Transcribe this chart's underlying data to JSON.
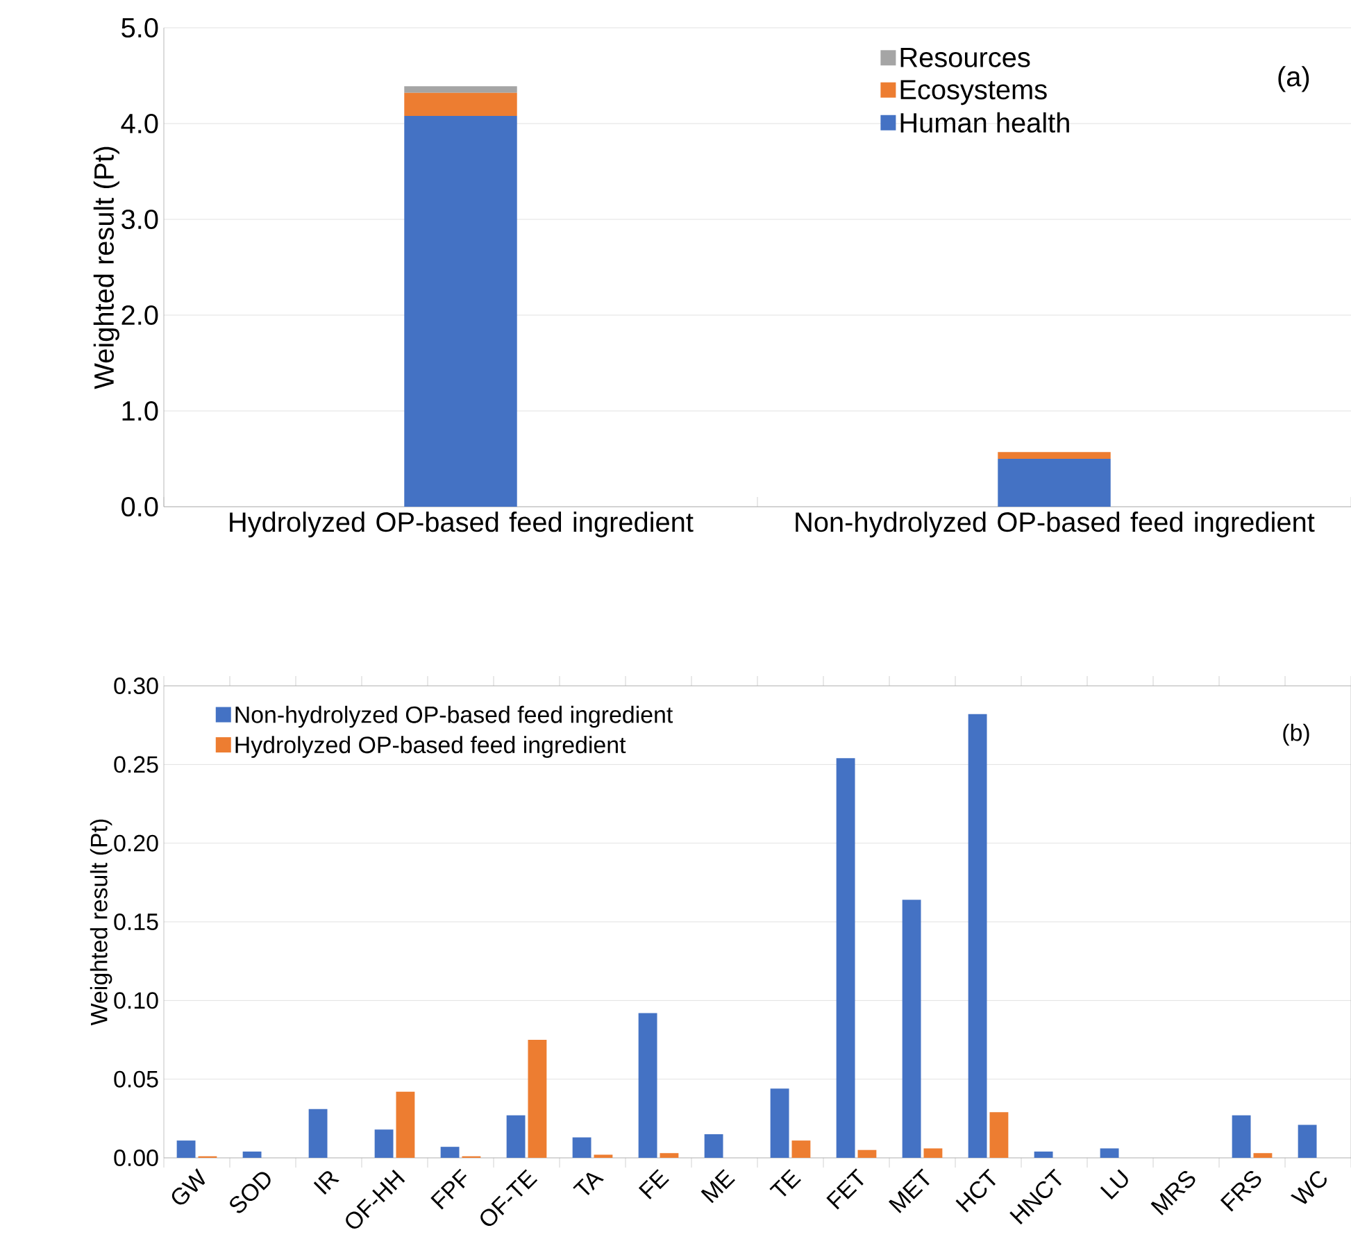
{
  "chart_data": [
    {
      "type": "bar",
      "stacked": true,
      "ylabel": "Weighted result (Pt)",
      "categories": [
        "Hydrolyzed OP-based feed ingredient",
        "Non-hydrolyzed OP-based feed ingredient"
      ],
      "series": [
        {
          "name": "Human health",
          "color": "#4472c4",
          "values": [
            4.08,
            0.5
          ]
        },
        {
          "name": "Ecosystems",
          "color": "#ed7d31",
          "values": [
            0.24,
            0.07
          ]
        },
        {
          "name": "Resources",
          "color": "#a5a5a5",
          "values": [
            0.07,
            null
          ]
        }
      ],
      "ylim": [
        0,
        5
      ],
      "yticks": [
        {
          "value": 0,
          "label": "0.0"
        },
        {
          "value": 1,
          "label": "1.0"
        },
        {
          "value": 2,
          "label": "2.0"
        },
        {
          "value": 3,
          "label": "3.0"
        },
        {
          "value": 4,
          "label": "4.0"
        },
        {
          "value": 5,
          "label": "5.0"
        }
      ],
      "grid": "y",
      "legend": "top right",
      "annotations": [
        "(a)"
      ]
    },
    {
      "type": "bar",
      "ylabel": "Weighted result (Pt)",
      "categories": [
        "GW",
        "SOD",
        "IR",
        "OF-HH",
        "FPF",
        "OF-TE",
        "TA",
        "FE",
        "ME",
        "TE",
        "FET",
        "MET",
        "HCT",
        "HNCT",
        "LU",
        "MRS",
        "FRS",
        "WC"
      ],
      "series": [
        {
          "name": "Non-hydrolyzed OP-based feed ingredient",
          "color": "#4472c4",
          "values": [
            0.011,
            0.004,
            0.031,
            0.018,
            0.007,
            0.027,
            0.013,
            0.092,
            0.015,
            0.044,
            0.254,
            0.164,
            0.282,
            0.004,
            0.006,
            0,
            0.027,
            0.021
          ]
        },
        {
          "name": "Hydrolyzed OP-based feed ingredient",
          "color": "#ed7d31",
          "values": [
            0.001,
            0,
            0,
            0.042,
            0.001,
            0.075,
            0.002,
            0.003,
            0,
            0.011,
            0.005,
            0.006,
            0.029,
            0,
            0,
            0,
            0.003,
            0
          ]
        }
      ],
      "ylim": [
        0,
        0.3
      ],
      "yticks": [
        {
          "value": 0,
          "label": "0.00"
        },
        {
          "value": 0.05,
          "label": "0.05"
        },
        {
          "value": 0.1,
          "label": "0.10"
        },
        {
          "value": 0.15,
          "label": "0.15"
        },
        {
          "value": 0.2,
          "label": "0.20"
        },
        {
          "value": 0.25,
          "label": "0.25"
        },
        {
          "value": 0.3,
          "label": "0.30"
        }
      ],
      "grid": "y",
      "legend": "top left",
      "annotations": [
        "(b)"
      ]
    }
  ]
}
